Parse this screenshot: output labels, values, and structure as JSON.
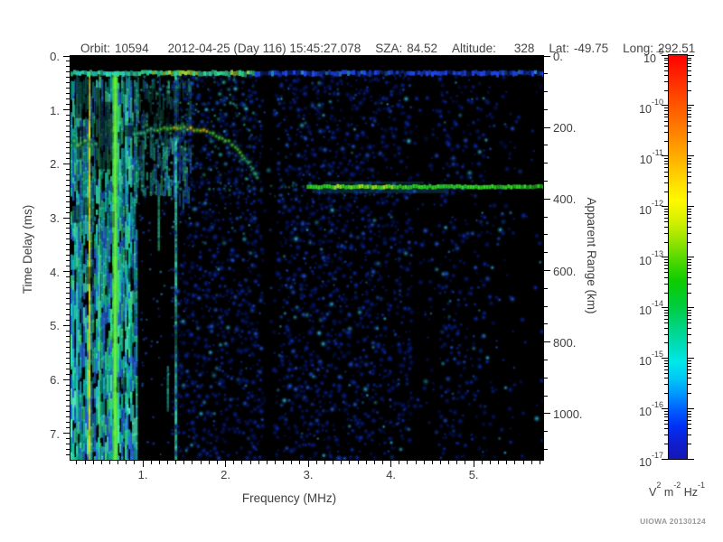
{
  "header": {
    "fields": [
      {
        "label": "Orbit:",
        "value": "10594"
      },
      {
        "label": "",
        "value": "2012-04-25 (Day 116) 15:45:27.078"
      },
      {
        "label": "SZA:",
        "value": "84.52"
      },
      {
        "label": "Altitude:",
        "value": "328"
      },
      {
        "label": "Lat:",
        "value": "-49.75"
      },
      {
        "label": "Long:",
        "value": "292.51"
      }
    ]
  },
  "footer": {
    "credit": "UIOWA 20130124"
  },
  "chart_data": {
    "type": "heatmap",
    "title": "",
    "xlabel": "Frequency (MHz)",
    "ylabel": "Time Delay (ms)",
    "y2label": "Apparent Range (km)",
    "xlim": [
      0.125,
      5.84
    ],
    "ylim": [
      0,
      7.49
    ],
    "y2lim": [
      0,
      1129
    ],
    "xticks": [
      {
        "v": 1,
        "label": "1."
      },
      {
        "v": 2,
        "label": "2."
      },
      {
        "v": 3,
        "label": "3."
      },
      {
        "v": 4,
        "label": "4."
      },
      {
        "v": 5,
        "label": "5."
      }
    ],
    "x_minor_step": 0.1,
    "yticks": [
      {
        "v": 0,
        "label": "0."
      },
      {
        "v": 1,
        "label": "1."
      },
      {
        "v": 2,
        "label": "2."
      },
      {
        "v": 3,
        "label": "3."
      },
      {
        "v": 4,
        "label": "4."
      },
      {
        "v": 5,
        "label": "5."
      },
      {
        "v": 6,
        "label": "6."
      },
      {
        "v": 7,
        "label": "7."
      }
    ],
    "y_minor_step": 0.1,
    "y2ticks": [
      {
        "v": 0,
        "label": "0."
      },
      {
        "v": 200,
        "label": "200."
      },
      {
        "v": 400,
        "label": "400."
      },
      {
        "v": 600,
        "label": "600."
      },
      {
        "v": 800,
        "label": "800."
      },
      {
        "v": 1000,
        "label": "1000."
      }
    ],
    "y2_minor_step": 50,
    "grid": false,
    "colorbar": {
      "scale": "log",
      "tick_base": "10",
      "tick_exponents": [
        "-9",
        "-10",
        "-11",
        "-12",
        "-13",
        "-14",
        "-15",
        "-16",
        "-17"
      ],
      "unit": {
        "b1": "V",
        "s1": "2",
        "b2": " m",
        "s2": "-2",
        "b3": " Hz",
        "s3": "-1"
      },
      "gradient": [
        {
          "c": "#ff0000",
          "p": 0
        },
        {
          "c": "#ff2a00",
          "p": 0.06
        },
        {
          "c": "#ff5a00",
          "p": 0.13
        },
        {
          "c": "#ff8800",
          "p": 0.2
        },
        {
          "c": "#ffb400",
          "p": 0.26
        },
        {
          "c": "#ffe000",
          "p": 0.32
        },
        {
          "c": "#fff800",
          "p": 0.36
        },
        {
          "c": "#d6f000",
          "p": 0.41
        },
        {
          "c": "#96e400",
          "p": 0.46
        },
        {
          "c": "#4cd800",
          "p": 0.51
        },
        {
          "c": "#0ccc00",
          "p": 0.56
        },
        {
          "c": "#00cc3c",
          "p": 0.62
        },
        {
          "c": "#00d47e",
          "p": 0.67
        },
        {
          "c": "#00dcba",
          "p": 0.72
        },
        {
          "c": "#00e8e8",
          "p": 0.76
        },
        {
          "c": "#00c8f4",
          "p": 0.8
        },
        {
          "c": "#0096ff",
          "p": 0.84
        },
        {
          "c": "#005cff",
          "p": 0.88
        },
        {
          "c": "#0030f4",
          "p": 0.92
        },
        {
          "c": "#101ed0",
          "p": 0.96
        },
        {
          "c": "#1418b4",
          "p": 1
        }
      ]
    },
    "seed": 20130124,
    "palette": {
      "speckle": [
        "#061e96",
        "#0a34e0",
        "#2062ff",
        "#34c8ff"
      ],
      "streaks": [
        "#14c89c",
        "#2adcae",
        "#3ee07e",
        "#18c8cc",
        "#52e8bc",
        "#0c9e8e",
        "#2a6ce0",
        "#22b4d8"
      ],
      "upper_speckle": [
        "#22c8c0",
        "#2a9ff0",
        "#35dca6",
        "#1c5ce8"
      ],
      "trace": {
        "yellow": "#ffe818",
        "green": "#55e83c",
        "cyan": "#3cd8ac",
        "glow": "#18a050"
      },
      "surface": {
        "green": "#32dc28",
        "bright": "#a0e81e",
        "fringe": "#22a0d0",
        "approach": "#2cc09c",
        "sub": "#2290cc"
      },
      "hop_line": {
        "green": "#32e09c",
        "teal": "#28d8c8",
        "yellowgreen": "#a8e038",
        "blue": "#1c48f0",
        "cyan": "#28a0e8"
      },
      "block_dots": [
        "#1c50e8",
        "#30a8f0"
      ]
    },
    "features": {
      "top_black_band_t": 0.17,
      "first_hop_line": {
        "t": 0.29,
        "green_until_f": 2.35
      },
      "streak_region": {
        "f_end": 0.93,
        "upper_f_end": 1.58,
        "upper_t_end": 2.55
      },
      "plasma_stripes": [
        {
          "f": 0.205,
          "w": 2,
          "color": "#2cd8b0",
          "alpha": 0.75
        },
        {
          "f": 0.355,
          "w": 2,
          "color": "#ecd800",
          "alpha": 1
        },
        {
          "f": 0.475,
          "w": 2,
          "color": "#55e065",
          "alpha": 0.65
        },
        {
          "f": 0.665,
          "w": 6,
          "color": "#46e832",
          "alpha": 0.95
        },
        {
          "f": 0.8,
          "w": 2,
          "color": "#2cd0c0",
          "alpha": 0.6
        },
        {
          "f": 1.4,
          "w": 3,
          "color": "#34e8c4",
          "alpha": 0.9
        }
      ],
      "black_block": {
        "f0": 0.95,
        "f1": 1.37,
        "t0": 2.6
      },
      "block_streaks": [
        {
          "f": 1.19,
          "t0": 2.6,
          "t1": 3.55,
          "color": "#2ad89e"
        },
        {
          "f": 1.3,
          "t0": 5.75,
          "t1": 6.55,
          "color": "#22c8b4"
        }
      ],
      "dark_columns": [
        {
          "f0": 2.42,
          "f1": 2.61,
          "factor": 0.1
        },
        {
          "f0": 4.27,
          "f1": 4.55,
          "factor": 0.3
        }
      ],
      "dark_patches": [
        {
          "f0": 0.18,
          "f1": 0.35,
          "t0": 0.35,
          "t1": 1.15
        },
        {
          "f0": 0.42,
          "f1": 0.63,
          "t0": 0.85,
          "t1": 2.1
        },
        {
          "f0": 1.02,
          "f1": 1.55,
          "t0": 0.6,
          "t1": 1.25
        }
      ],
      "ionogram_trace": {
        "points": [
          [
            0.9,
            1.44
          ],
          [
            1.1,
            1.37
          ],
          [
            1.3,
            1.34
          ],
          [
            1.5,
            1.34
          ],
          [
            1.7,
            1.37
          ],
          [
            1.85,
            1.44
          ],
          [
            2.0,
            1.55
          ],
          [
            2.12,
            1.68
          ],
          [
            2.23,
            1.88
          ],
          [
            2.33,
            2.1
          ],
          [
            2.4,
            2.33
          ]
        ],
        "yellow_f0": 1.38,
        "yellow_f1": 1.8
      },
      "local_echo_blob": {
        "t": 1.62,
        "f0": 0.125,
        "f1": 0.47
      },
      "surface_echo": {
        "t": 2.41,
        "f0": 2.98,
        "f1": 5.84,
        "bright_f": 3.7,
        "approach_f0": 2.55
      },
      "sub_echo": {
        "t": 2.58,
        "f0": 2.05,
        "f1": 4.2
      }
    }
  }
}
